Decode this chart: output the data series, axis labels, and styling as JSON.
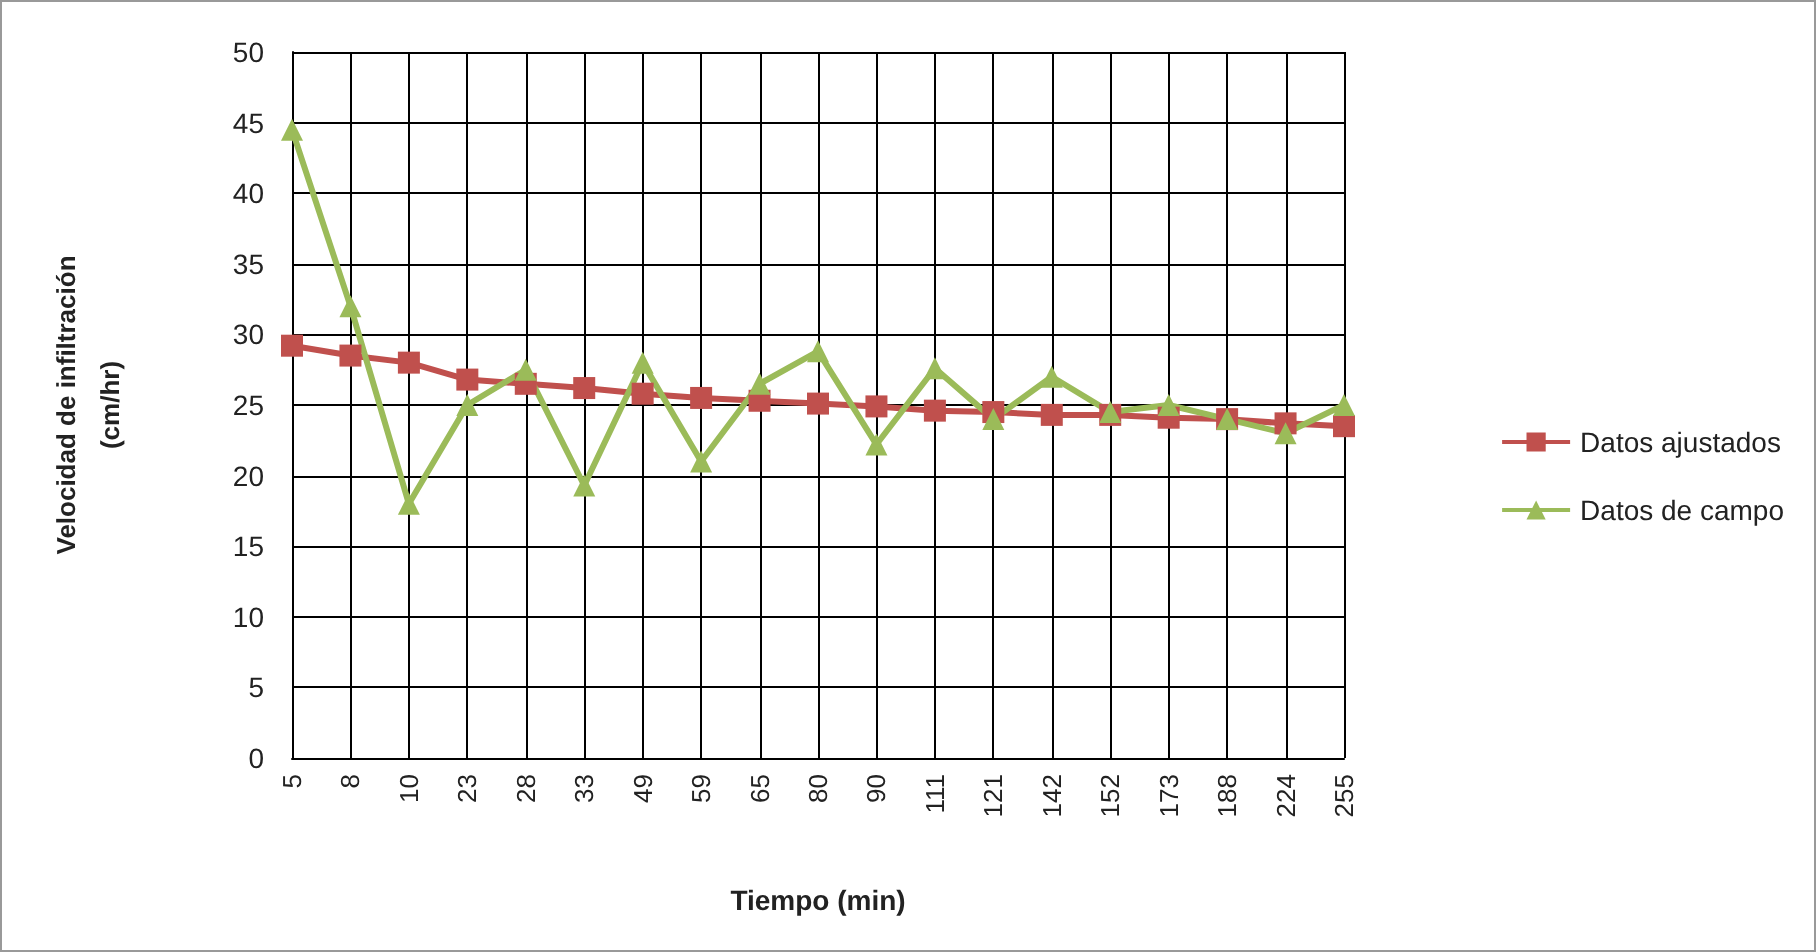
{
  "chart_data": {
    "type": "line",
    "xlabel": "Tiempo (min)",
    "ylabel": "Velocidad de infiltración\n(cm/hr)",
    "categories": [
      "5",
      "8",
      "10",
      "23",
      "28",
      "33",
      "49",
      "59",
      "65",
      "80",
      "90",
      "111",
      "121",
      "142",
      "152",
      "173",
      "188",
      "224",
      "255"
    ],
    "series": [
      {
        "name": "Datos ajustados",
        "color": "#c0504d",
        "marker": "square",
        "values": [
          29.2,
          28.5,
          28,
          26.8,
          26.5,
          26.2,
          25.8,
          25.5,
          25.3,
          25.1,
          24.9,
          24.6,
          24.5,
          24.3,
          24.3,
          24.1,
          24,
          23.7,
          23.5
        ]
      },
      {
        "name": "Datos de campo",
        "color": "#9bbb59",
        "marker": "triangle",
        "values": [
          44.5,
          32,
          18,
          25,
          27.5,
          19.3,
          28,
          21,
          26.5,
          28.8,
          22.2,
          27.6,
          24,
          27,
          24.5,
          25,
          24,
          23,
          25
        ]
      }
    ],
    "ylim": [
      0,
      50
    ],
    "yticks": [
      0,
      5,
      10,
      15,
      20,
      25,
      30,
      35,
      40,
      45,
      50
    ],
    "grid": true,
    "legend": "right",
    "line_style": "solid"
  }
}
